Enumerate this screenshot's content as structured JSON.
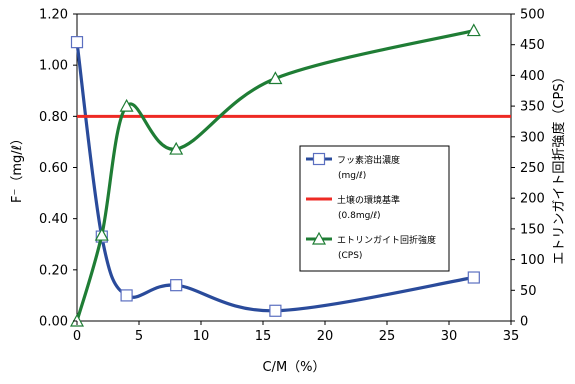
{
  "chart_data": {
    "type": "line",
    "xlabel": "C/M（%）",
    "ylabel_left": "F⁻（mg/ℓ）",
    "ylabel_right": "エトリンガイト回折強度（CPS）",
    "xlim": [
      0,
      35
    ],
    "ylim_left": [
      0,
      1.2
    ],
    "ylim_right": [
      0,
      500
    ],
    "x_ticks": [
      "0",
      "5",
      "10",
      "15",
      "20",
      "25",
      "30",
      "35"
    ],
    "y_left_ticks": [
      "0.00",
      "0.20",
      "0.40",
      "0.60",
      "0.80",
      "1.00",
      "1.20"
    ],
    "y_right_ticks": [
      "0",
      "50",
      "100",
      "150",
      "200",
      "250",
      "300",
      "350",
      "400",
      "450",
      "500"
    ],
    "grid": false,
    "legend_position": "center-right",
    "series": [
      {
        "name": "フッ素溶出濃度",
        "name_sub": "(mg/ℓ)",
        "axis": "left",
        "color": "#2a4b9b",
        "marker": "square",
        "x": [
          0,
          2,
          4,
          8,
          16,
          32
        ],
        "y": [
          1.09,
          0.33,
          0.1,
          0.14,
          0.04,
          0.17
        ]
      },
      {
        "name": "土壌の環境基準",
        "name_sub": "(0.8mg/ℓ)",
        "axis": "left",
        "color": "#ee2a24",
        "marker": "none",
        "x": [
          0,
          35
        ],
        "y": [
          0.8,
          0.8
        ]
      },
      {
        "name": "エトリンガイト回折強度",
        "name_sub": "(CPS)",
        "axis": "right",
        "color": "#1f7d35",
        "marker": "triangle",
        "x": [
          0,
          2,
          4,
          8,
          16,
          32
        ],
        "y": [
          0,
          140,
          350,
          280,
          395,
          473
        ]
      }
    ]
  }
}
